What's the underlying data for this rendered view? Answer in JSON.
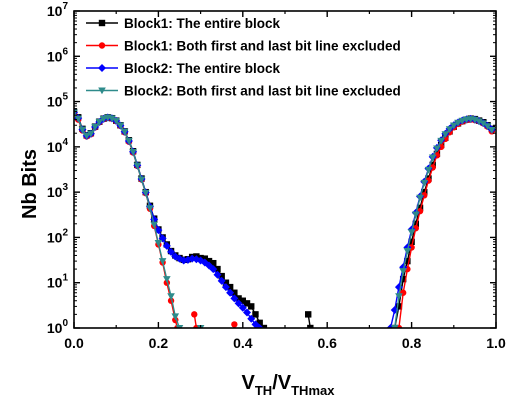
{
  "chart_data": {
    "type": "line",
    "ylabel": "Nb Bits",
    "xlabel_main": "V",
    "xlabel_sub1": "TH",
    "xlabel_mid": "/V",
    "xlabel_sub2": "THmax",
    "x_ticks": [
      "0.0",
      "0.2",
      "0.4",
      "0.6",
      "0.8",
      "1.0"
    ],
    "y_ticks": [
      {
        "base": "10",
        "exp": "0"
      },
      {
        "base": "10",
        "exp": "1"
      },
      {
        "base": "10",
        "exp": "2"
      },
      {
        "base": "10",
        "exp": "3"
      },
      {
        "base": "10",
        "exp": "4"
      },
      {
        "base": "10",
        "exp": "5"
      },
      {
        "base": "10",
        "exp": "6"
      },
      {
        "base": "10",
        "exp": "7"
      }
    ],
    "xlim": [
      0,
      1
    ],
    "ylim": [
      1,
      10000000
    ],
    "y_scale": "log",
    "legend_position": "top-right",
    "series": [
      {
        "name": "Block1: The entire block",
        "color": "#000000",
        "marker": "square",
        "segments": [
          [
            [
              0.0,
              60000
            ],
            [
              0.01,
              45000
            ],
            [
              0.02,
              25000
            ],
            [
              0.03,
              18000
            ],
            [
              0.04,
              20000
            ],
            [
              0.05,
              28000
            ],
            [
              0.06,
              36000
            ],
            [
              0.07,
              42000
            ],
            [
              0.08,
              45000
            ],
            [
              0.09,
              43000
            ],
            [
              0.1,
              38000
            ],
            [
              0.11,
              30000
            ],
            [
              0.12,
              22000
            ],
            [
              0.13,
              14000
            ],
            [
              0.14,
              8000
            ],
            [
              0.15,
              4000
            ],
            [
              0.16,
              2000
            ],
            [
              0.17,
              1000
            ],
            [
              0.18,
              500
            ],
            [
              0.19,
              260
            ],
            [
              0.2,
              150
            ],
            [
              0.21,
              100
            ],
            [
              0.22,
              70
            ],
            [
              0.23,
              50
            ],
            [
              0.24,
              40
            ],
            [
              0.25,
              35
            ],
            [
              0.26,
              32
            ],
            [
              0.27,
              33
            ],
            [
              0.28,
              37
            ],
            [
              0.29,
              38
            ],
            [
              0.3,
              35
            ],
            [
              0.31,
              34
            ],
            [
              0.32,
              30
            ],
            [
              0.33,
              27
            ],
            [
              0.34,
              20
            ],
            [
              0.35,
              14
            ],
            [
              0.36,
              10
            ],
            [
              0.37,
              8
            ],
            [
              0.38,
              6
            ],
            [
              0.39,
              4.5
            ],
            [
              0.4,
              4
            ],
            [
              0.41,
              3.5
            ],
            [
              0.42,
              3
            ],
            [
              0.43,
              2
            ],
            [
              0.44,
              1.3
            ],
            [
              0.45,
              1
            ]
          ],
          [
            [
              0.555,
              2
            ],
            [
              0.56,
              1
            ]
          ],
          [
            [
              0.76,
              1
            ],
            [
              0.77,
              3
            ],
            [
              0.78,
              12
            ],
            [
              0.79,
              30
            ],
            [
              0.8,
              80
            ],
            [
              0.81,
              200
            ],
            [
              0.82,
              450
            ],
            [
              0.83,
              1000
            ],
            [
              0.84,
              2000
            ],
            [
              0.85,
              4000
            ],
            [
              0.86,
              7000
            ],
            [
              0.87,
              11000
            ],
            [
              0.88,
              16000
            ],
            [
              0.89,
              22000
            ],
            [
              0.9,
              28000
            ],
            [
              0.91,
              33000
            ],
            [
              0.92,
              37000
            ],
            [
              0.93,
              40000
            ],
            [
              0.94,
              42000
            ],
            [
              0.95,
              41000
            ],
            [
              0.96,
              38000
            ],
            [
              0.97,
              35000
            ],
            [
              0.98,
              30000
            ],
            [
              0.99,
              25000
            ]
          ]
        ]
      },
      {
        "name": "Block1: Both first and last bit line excluded",
        "color": "#ff0000",
        "marker": "circle",
        "segments": [
          [
            [
              0.0,
              55000
            ],
            [
              0.01,
              40000
            ],
            [
              0.02,
              23000
            ],
            [
              0.03,
              17000
            ],
            [
              0.04,
              19000
            ],
            [
              0.05,
              27000
            ],
            [
              0.06,
              35000
            ],
            [
              0.07,
              41000
            ],
            [
              0.08,
              44000
            ],
            [
              0.09,
              42000
            ],
            [
              0.1,
              37000
            ],
            [
              0.11,
              29000
            ],
            [
              0.12,
              21000
            ],
            [
              0.13,
              13000
            ],
            [
              0.14,
              7500
            ],
            [
              0.15,
              3800
            ],
            [
              0.16,
              1900
            ],
            [
              0.17,
              950
            ],
            [
              0.18,
              430
            ],
            [
              0.19,
              180
            ],
            [
              0.2,
              70
            ],
            [
              0.21,
              28
            ],
            [
              0.22,
              10
            ],
            [
              0.23,
              4
            ],
            [
              0.24,
              1.5
            ],
            [
              0.245,
              1
            ]
          ],
          [
            [
              0.285,
              2
            ],
            [
              0.29,
              1
            ]
          ],
          [
            [
              0.38,
              1.2
            ]
          ],
          [
            [
              0.77,
              1
            ],
            [
              0.78,
              6
            ],
            [
              0.79,
              20
            ],
            [
              0.8,
              60
            ],
            [
              0.81,
              160
            ],
            [
              0.82,
              380
            ],
            [
              0.83,
              850
            ],
            [
              0.84,
              1800
            ],
            [
              0.85,
              3500
            ],
            [
              0.86,
              6500
            ],
            [
              0.87,
              10000
            ],
            [
              0.88,
              15000
            ],
            [
              0.89,
              21000
            ],
            [
              0.9,
              27000
            ],
            [
              0.91,
              32000
            ],
            [
              0.92,
              36000
            ],
            [
              0.93,
              39000
            ],
            [
              0.94,
              40000
            ],
            [
              0.95,
              39000
            ],
            [
              0.96,
              37000
            ],
            [
              0.97,
              33000
            ],
            [
              0.98,
              28000
            ],
            [
              0.99,
              22000
            ]
          ]
        ]
      },
      {
        "name": "Block2: The entire block",
        "color": "#0000ff",
        "marker": "diamond",
        "segments": [
          [
            [
              0.0,
              58000
            ],
            [
              0.01,
              43000
            ],
            [
              0.02,
              24000
            ],
            [
              0.03,
              17500
            ],
            [
              0.04,
              19500
            ],
            [
              0.05,
              27500
            ],
            [
              0.06,
              35500
            ],
            [
              0.07,
              41500
            ],
            [
              0.08,
              44500
            ],
            [
              0.09,
              42500
            ],
            [
              0.1,
              37500
            ],
            [
              0.11,
              29500
            ],
            [
              0.12,
              21500
            ],
            [
              0.13,
              13500
            ],
            [
              0.14,
              7800
            ],
            [
              0.15,
              3900
            ],
            [
              0.16,
              1950
            ],
            [
              0.17,
              980
            ],
            [
              0.18,
              480
            ],
            [
              0.19,
              250
            ],
            [
              0.2,
              145
            ],
            [
              0.21,
              95
            ],
            [
              0.22,
              65
            ],
            [
              0.23,
              48
            ],
            [
              0.24,
              38
            ],
            [
              0.25,
              34
            ],
            [
              0.26,
              31
            ],
            [
              0.27,
              32
            ],
            [
              0.28,
              34
            ],
            [
              0.29,
              33
            ],
            [
              0.3,
              31
            ],
            [
              0.31,
              28
            ],
            [
              0.32,
              24
            ],
            [
              0.33,
              20
            ],
            [
              0.34,
              15
            ],
            [
              0.35,
              11
            ],
            [
              0.36,
              8
            ],
            [
              0.37,
              6
            ],
            [
              0.38,
              4.5
            ],
            [
              0.39,
              3.5
            ],
            [
              0.4,
              2.8
            ],
            [
              0.41,
              2.2
            ],
            [
              0.42,
              1.6
            ],
            [
              0.43,
              1.2
            ],
            [
              0.44,
              1
            ]
          ],
          [
            [
              0.75,
              1
            ],
            [
              0.76,
              2.5
            ],
            [
              0.77,
              8
            ],
            [
              0.78,
              22
            ],
            [
              0.79,
              60
            ],
            [
              0.8,
              150
            ],
            [
              0.81,
              350
            ],
            [
              0.82,
              800
            ],
            [
              0.83,
              1700
            ],
            [
              0.84,
              3300
            ],
            [
              0.85,
              6000
            ],
            [
              0.86,
              9500
            ],
            [
              0.87,
              14000
            ],
            [
              0.88,
              19500
            ],
            [
              0.89,
              25000
            ],
            [
              0.9,
              30000
            ],
            [
              0.91,
              34500
            ],
            [
              0.92,
              38000
            ],
            [
              0.93,
              40500
            ],
            [
              0.94,
              41500
            ],
            [
              0.95,
              40000
            ],
            [
              0.96,
              37000
            ],
            [
              0.97,
              33500
            ],
            [
              0.98,
              29000
            ],
            [
              0.99,
              24000
            ]
          ]
        ]
      },
      {
        "name": "Block2: Both first and last bit line excluded",
        "color": "#2e8b8b",
        "marker": "triangle-down",
        "segments": [
          [
            [
              0.0,
              57000
            ],
            [
              0.01,
              42000
            ],
            [
              0.02,
              24000
            ],
            [
              0.03,
              17500
            ],
            [
              0.04,
              19500
            ],
            [
              0.05,
              27500
            ],
            [
              0.06,
              35500
            ],
            [
              0.07,
              41500
            ],
            [
              0.08,
              44500
            ],
            [
              0.09,
              42500
            ],
            [
              0.1,
              37500
            ],
            [
              0.11,
              29500
            ],
            [
              0.12,
              21500
            ],
            [
              0.13,
              13500
            ],
            [
              0.14,
              7700
            ],
            [
              0.15,
              3850
            ],
            [
              0.16,
              1900
            ],
            [
              0.17,
              960
            ],
            [
              0.18,
              440
            ],
            [
              0.19,
              190
            ],
            [
              0.2,
              75
            ],
            [
              0.21,
              30
            ],
            [
              0.22,
              12
            ],
            [
              0.23,
              5
            ],
            [
              0.24,
              1.8
            ],
            [
              0.25,
              1
            ]
          ],
          [
            [
              0.3,
              1
            ]
          ],
          [
            [
              0.76,
              1
            ],
            [
              0.77,
              5
            ],
            [
              0.78,
              18
            ],
            [
              0.79,
              50
            ],
            [
              0.8,
              130
            ],
            [
              0.81,
              320
            ],
            [
              0.82,
              750
            ],
            [
              0.83,
              1600
            ],
            [
              0.84,
              3100
            ],
            [
              0.85,
              5800
            ],
            [
              0.86,
              9200
            ],
            [
              0.87,
              13500
            ],
            [
              0.88,
              19000
            ],
            [
              0.89,
              24500
            ],
            [
              0.9,
              29500
            ],
            [
              0.91,
              34000
            ],
            [
              0.92,
              37500
            ],
            [
              0.93,
              40000
            ],
            [
              0.94,
              41000
            ],
            [
              0.95,
              39500
            ],
            [
              0.96,
              36500
            ],
            [
              0.97,
              33000
            ],
            [
              0.98,
              28500
            ],
            [
              0.99,
              23500
            ]
          ]
        ]
      }
    ]
  }
}
